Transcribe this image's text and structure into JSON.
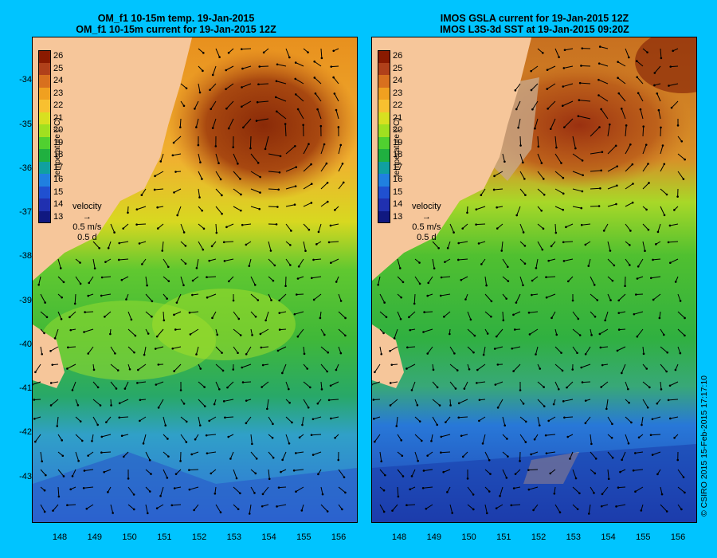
{
  "left_panel": {
    "title_line1": "OM_f1 10-15m temp. 19-Jan-2015",
    "title_line2": "OM_f1 10-15m current for 19-Jan-2015 12Z"
  },
  "right_panel": {
    "title_line1": "IMOS GSLA current for 19-Jan-2015 12Z",
    "title_line2": "IMOS L3S-3d SST at 19-Jan-2015 09:20Z"
  },
  "colorbar": {
    "labels": [
      "26",
      "25",
      "24",
      "23",
      "22",
      "21",
      "20",
      "19",
      "18",
      "17",
      "16",
      "15",
      "14",
      "13"
    ],
    "title": "temperature (°C)",
    "colors": [
      "#8a1a00",
      "#b0401a",
      "#d8701e",
      "#f0a020",
      "#f8c030",
      "#d8e020",
      "#a0e020",
      "#50d030",
      "#20b040",
      "#10a0a0",
      "#2080e0",
      "#2050d0",
      "#2030b0",
      "#101880"
    ]
  },
  "velocity_legend": {
    "label": "velocity",
    "speed": "0.5 m/s",
    "time": "0.5 d"
  },
  "y_axis": {
    "labels": [
      "-34",
      "-35",
      "-36",
      "-37",
      "-38",
      "-39",
      "-40",
      "-41",
      "-42",
      "-43"
    ],
    "range": [
      -44,
      -33
    ]
  },
  "x_axis": {
    "labels": [
      "148",
      "149",
      "150",
      "151",
      "152",
      "153",
      "154",
      "155",
      "156"
    ],
    "range": [
      147.2,
      156.5
    ]
  },
  "footer": "© CSIRO 2015   15-Feb-2015 17:17:10",
  "colors": {
    "background": "#00c4ff",
    "land": "#f6c69a",
    "cloud": "#c8a888"
  }
}
